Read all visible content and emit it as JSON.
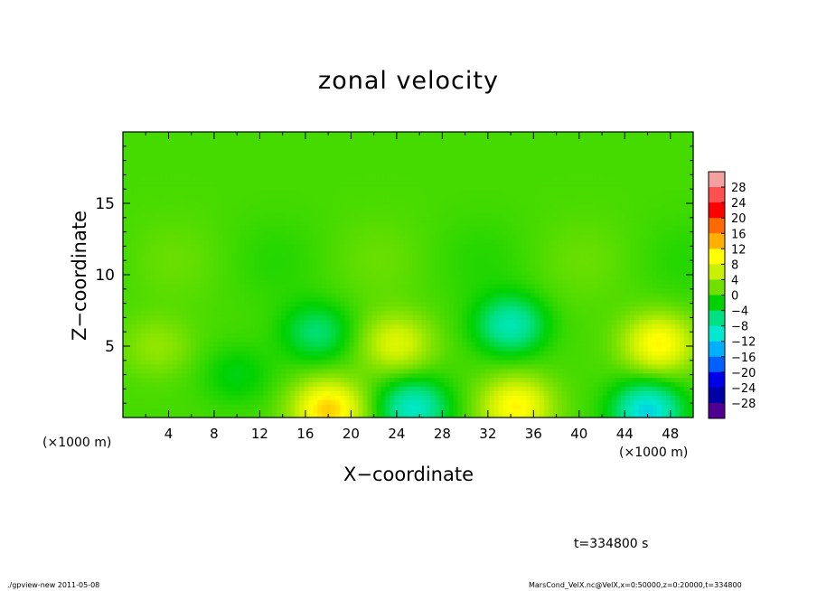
{
  "chart_data": {
    "type": "heatmap",
    "title": "zonal velocity",
    "xlabel": "X−coordinate",
    "ylabel": "Z−coordinate",
    "x_unit_left": "(×1000 m)",
    "x_unit_right": "(×1000 m)",
    "xlim": [
      0,
      50
    ],
    "ylim": [
      0,
      20
    ],
    "x_ticks": [
      "4",
      "8",
      "12",
      "16",
      "20",
      "24",
      "28",
      "32",
      "36",
      "40",
      "44",
      "48"
    ],
    "y_ticks": [
      "5",
      "10",
      "15"
    ],
    "colorbar_labels": [
      "28",
      "24",
      "20",
      "16",
      "12",
      "8",
      "4",
      "0",
      "−4",
      "−8",
      "−12",
      "−16",
      "−20",
      "−24",
      "−28"
    ],
    "colorbar_range": [
      -30,
      30
    ],
    "colorbar_colors": [
      "#f5a0a0",
      "#ff5050",
      "#ff0000",
      "#ff6a00",
      "#ffb000",
      "#ffff00",
      "#c8f000",
      "#70e000",
      "#00d200",
      "#00e080",
      "#00e8d0",
      "#00b0ff",
      "#0060ff",
      "#0000e8",
      "#0000a8",
      "#500090"
    ],
    "background_value": 0.5,
    "features": [
      {
        "x": 18,
        "z": 0.6,
        "value": 12
      },
      {
        "x": 34.5,
        "z": 0.8,
        "value": 10
      },
      {
        "x": 24,
        "z": 5.2,
        "value": 7
      },
      {
        "x": 47,
        "z": 5.2,
        "value": 10
      },
      {
        "x": 34,
        "z": 6.5,
        "value": -9
      },
      {
        "x": 17,
        "z": 6.0,
        "value": -6
      },
      {
        "x": 25.5,
        "z": 0.7,
        "value": -10
      },
      {
        "x": 46,
        "z": 0.5,
        "value": -12
      },
      {
        "x": 3,
        "z": 5.0,
        "value": 3
      },
      {
        "x": 10,
        "z": 3.0,
        "value": -3
      }
    ]
  },
  "annotations": {
    "time": "t=334800 s",
    "footer_left": "./gpview-new  2011-05-08",
    "footer_right": "MarsCond_VelX.nc@VelX,x=0:50000,z=0:20000,t=334800"
  }
}
